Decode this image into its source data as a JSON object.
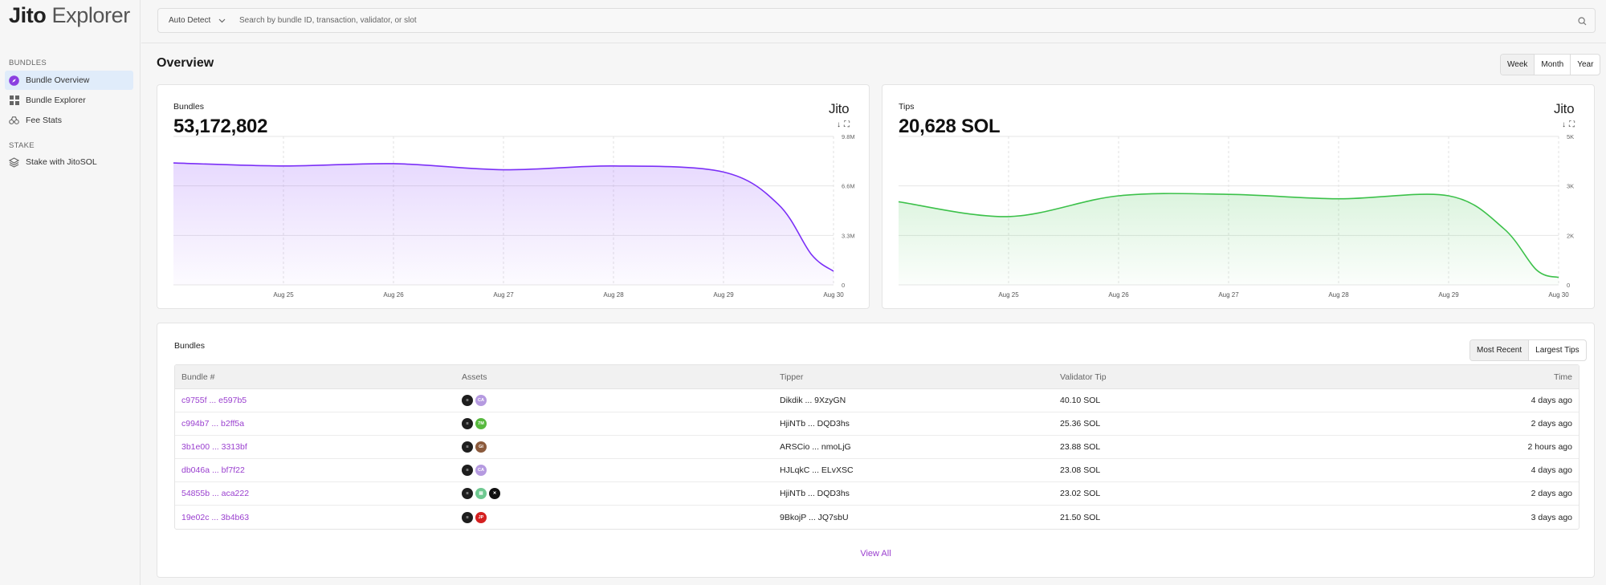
{
  "sidebar": {
    "logo_bold": "Jito",
    "logo_light": " Explorer",
    "section_bundles": "BUNDLES",
    "section_stake": "STAKE",
    "items": [
      {
        "label": "Bundle Overview",
        "active": true
      },
      {
        "label": "Bundle Explorer",
        "active": false
      },
      {
        "label": "Fee Stats",
        "active": false
      },
      {
        "label": "Stake with JitoSOL",
        "active": false
      }
    ]
  },
  "search": {
    "mode": "Auto Detect",
    "placeholder": "Search by bundle ID, transaction, validator, or slot"
  },
  "overview": {
    "title": "Overview",
    "ranges": [
      "Week",
      "Month",
      "Year"
    ],
    "selected_range": "Week"
  },
  "cards": {
    "bundles": {
      "label": "Bundles",
      "value": "53,172,802",
      "brand": "Jito"
    },
    "tips": {
      "label": "Tips",
      "value": "20,628 SOL",
      "brand": "Jito"
    },
    "download_icon": "↓",
    "expand_icon": "⛶"
  },
  "chart_data": [
    {
      "type": "area",
      "title": "Bundles",
      "color": "#7b2ff7",
      "x": [
        "Aug 24",
        "Aug 25",
        "Aug 26",
        "Aug 27",
        "Aug 28",
        "Aug 29",
        "Aug 29.5",
        "Aug 29.8",
        "Aug 30"
      ],
      "y": [
        8.05,
        7.85,
        8.0,
        7.6,
        7.85,
        7.45,
        5.3,
        2.0,
        0.9
      ],
      "x_tick_labels": [
        "Aug 25",
        "Aug 26",
        "Aug 27",
        "Aug 28",
        "Aug 29",
        "Aug 30"
      ],
      "y_tick_labels": [
        "0",
        "3.3M",
        "6.6M",
        "9.8M"
      ],
      "ylim": [
        0,
        9.8
      ],
      "yunit": "M"
    },
    {
      "type": "area",
      "title": "Tips",
      "color": "#3cc14a",
      "x": [
        "Aug 24",
        "Aug 25",
        "Aug 26",
        "Aug 27",
        "Aug 28",
        "Aug 29",
        "Aug 29.5",
        "Aug 29.8",
        "Aug 30"
      ],
      "y": [
        2.8,
        2.3,
        3.0,
        3.05,
        2.9,
        3.0,
        1.9,
        0.5,
        0.25
      ],
      "x_tick_labels": [
        "Aug 25",
        "Aug 26",
        "Aug 27",
        "Aug 28",
        "Aug 29",
        "Aug 30"
      ],
      "y_tick_labels": [
        "0",
        "2K",
        "3K",
        "5K"
      ],
      "ylim": [
        0,
        5
      ],
      "yunit": "K"
    }
  ],
  "bundles_table": {
    "title": "Bundles",
    "sort_options": [
      "Most Recent",
      "Largest Tips"
    ],
    "selected_sort": "Most Recent",
    "columns": [
      "Bundle #",
      "Assets",
      "Tipper",
      "Validator Tip",
      "Time"
    ],
    "rows": [
      {
        "bundle": "c9755f ... e597b5",
        "assets": [
          {
            "color": "#1e1e1e",
            "text": "≡"
          },
          {
            "color": "#b59ae0",
            "text": "CA"
          }
        ],
        "tipper": "Dikdik ... 9XzyGN",
        "tip": "40.10 SOL",
        "time": "4 days ago"
      },
      {
        "bundle": "c994b7 ... b2ff5a",
        "assets": [
          {
            "color": "#1e1e1e",
            "text": "≡"
          },
          {
            "color": "#57b93e",
            "text": "7M"
          }
        ],
        "tipper": "HjiNTb ... DQD3hs",
        "tip": "25.36 SOL",
        "time": "2 days ago"
      },
      {
        "bundle": "3b1e00 ... 3313bf",
        "assets": [
          {
            "color": "#1e1e1e",
            "text": "≡"
          },
          {
            "color": "#8b5a3c",
            "text": "GI"
          }
        ],
        "tipper": "ARSCio ... nmoLjG",
        "tip": "23.88 SOL",
        "time": "2 hours ago"
      },
      {
        "bundle": "db046a ... bf7f22",
        "assets": [
          {
            "color": "#1e1e1e",
            "text": "≡"
          },
          {
            "color": "#b59ae0",
            "text": "CA"
          }
        ],
        "tipper": "HJLqkC ... ELvXSC",
        "tip": "23.08 SOL",
        "time": "4 days ago"
      },
      {
        "bundle": "54855b ... aca222",
        "assets": [
          {
            "color": "#1e1e1e",
            "text": "≡"
          },
          {
            "color": "#6ec890",
            "text": "▤"
          },
          {
            "color": "#111111",
            "text": "✕"
          }
        ],
        "tipper": "HjiNTb ... DQD3hs",
        "tip": "23.02 SOL",
        "time": "2 days ago"
      },
      {
        "bundle": "19e02c ... 3b4b63",
        "assets": [
          {
            "color": "#1e1e1e",
            "text": "≡"
          },
          {
            "color": "#d42020",
            "text": "JP"
          }
        ],
        "tipper": "9BkojP ... JQ7sbU",
        "tip": "21.50 SOL",
        "time": "3 days ago"
      }
    ],
    "view_all": "View All"
  }
}
